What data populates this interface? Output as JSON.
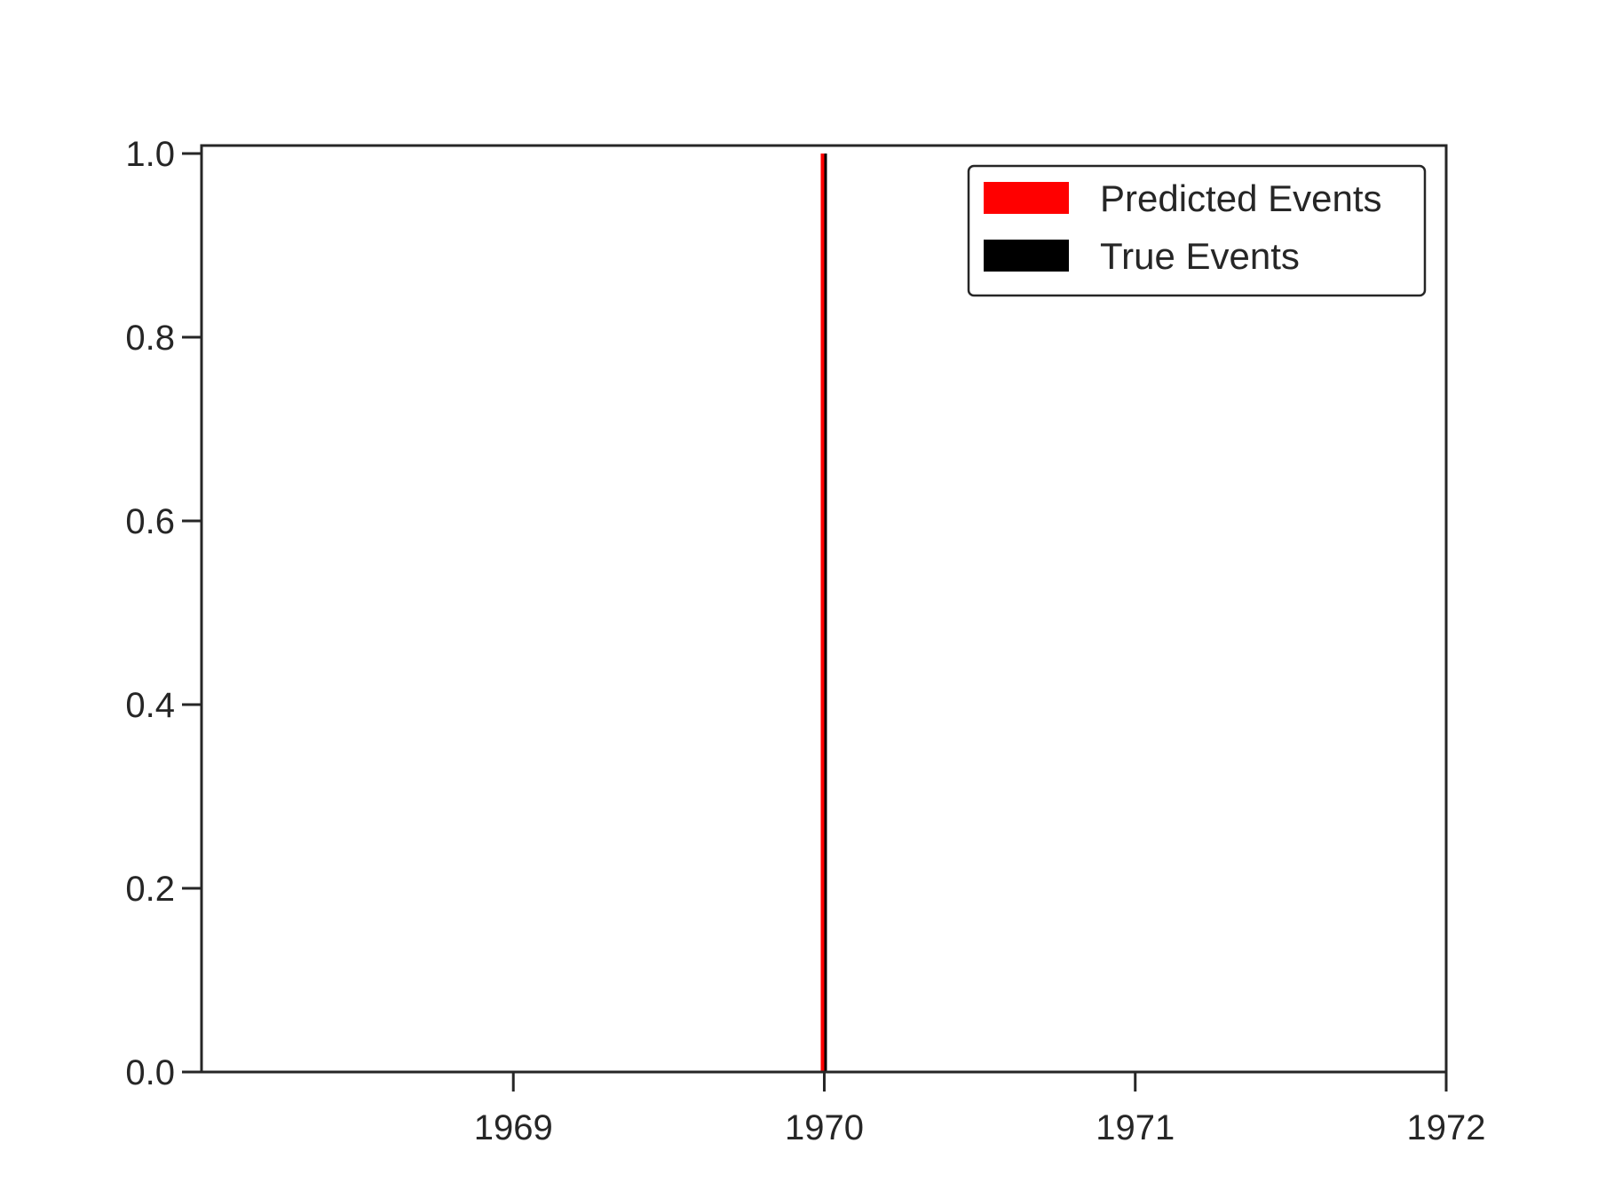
{
  "chart_data": {
    "type": "bar",
    "title": "",
    "xlabel": "",
    "ylabel": "",
    "x_axis": {
      "type": "date-year",
      "ticks": [
        "1969",
        "1970",
        "1971",
        "1972"
      ],
      "range": [
        "1968-01-01",
        "1972-01-01"
      ]
    },
    "y_axis": {
      "ylim": [
        0.0,
        1.0
      ],
      "ticks": [
        0.0,
        0.2,
        0.4,
        0.6,
        0.8,
        1.0
      ],
      "tick_labels": [
        "0.0",
        "0.2",
        "0.4",
        "0.6",
        "0.8",
        "1.0"
      ]
    },
    "grid": false,
    "legend": {
      "placement": "top-right",
      "entries": [
        {
          "label": "Predicted Events",
          "color": "#ff0000"
        },
        {
          "label": "True Events",
          "color": "#000000"
        }
      ]
    },
    "series": [
      {
        "name": "Predicted Events",
        "color": "#ff0000",
        "events": [
          {
            "x": "1970-01-01",
            "y": 1.0
          }
        ]
      },
      {
        "name": "True Events",
        "color": "#000000",
        "events": [
          {
            "x": "1970-01-01",
            "y": 1.0
          }
        ]
      }
    ]
  }
}
